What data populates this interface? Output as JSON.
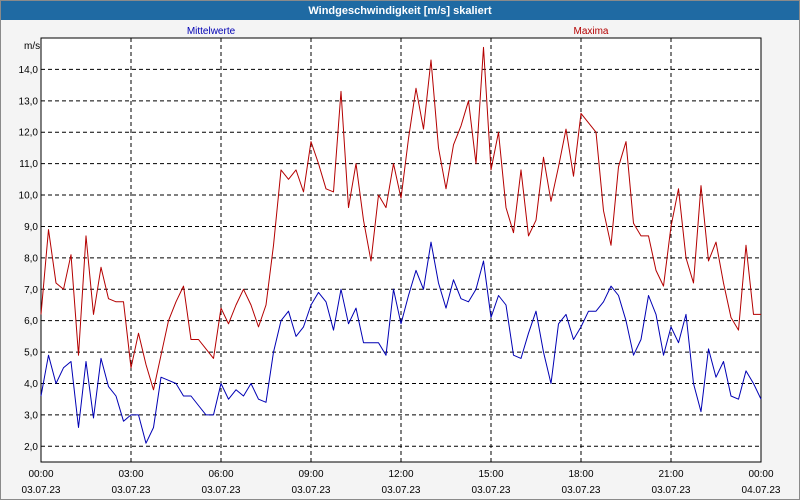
{
  "window": {
    "title": "Windgeschwindigkeit [m/s] skaliert"
  },
  "chart_data": {
    "type": "line",
    "title": "Windgeschwindigkeit [m/s] skaliert",
    "ylabel": "m/s",
    "ylim": [
      1.5,
      15.0
    ],
    "yticks": [
      2.0,
      3.0,
      4.0,
      5.0,
      6.0,
      7.0,
      8.0,
      9.0,
      10.0,
      11.0,
      12.0,
      13.0,
      14.0
    ],
    "ytick_labels": [
      "2,0",
      "3,0",
      "4,0",
      "5,0",
      "6,0",
      "7,0",
      "8,0",
      "9,0",
      "10,0",
      "11,0",
      "12,0",
      "13,0",
      "14,0"
    ],
    "xlim_hours": [
      0,
      24
    ],
    "xticks": [
      {
        "time": "00:00",
        "date": "03.07.23"
      },
      {
        "time": "03:00",
        "date": "03.07.23"
      },
      {
        "time": "06:00",
        "date": "03.07.23"
      },
      {
        "time": "09:00",
        "date": "03.07.23"
      },
      {
        "time": "12:00",
        "date": "03.07.23"
      },
      {
        "time": "15:00",
        "date": "03.07.23"
      },
      {
        "time": "18:00",
        "date": "03.07.23"
      },
      {
        "time": "21:00",
        "date": "03.07.23"
      },
      {
        "time": "00:00",
        "date": "04.07.23"
      }
    ],
    "grid": true,
    "legend_placement": "top",
    "series": [
      {
        "name": "Mittelwerte",
        "color": "#0000b4",
        "x_hours": [
          0.0,
          0.25,
          0.5,
          0.75,
          1.0,
          1.25,
          1.5,
          1.75,
          2.0,
          2.25,
          2.5,
          2.75,
          3.0,
          3.25,
          3.5,
          3.75,
          4.0,
          4.25,
          4.5,
          4.75,
          5.0,
          5.25,
          5.5,
          5.75,
          6.0,
          6.25,
          6.5,
          6.75,
          7.0,
          7.25,
          7.5,
          7.75,
          8.0,
          8.25,
          8.5,
          8.75,
          9.0,
          9.25,
          9.5,
          9.75,
          10.0,
          10.25,
          10.5,
          10.75,
          11.0,
          11.25,
          11.5,
          11.75,
          12.0,
          12.25,
          12.5,
          12.75,
          13.0,
          13.25,
          13.5,
          13.75,
          14.0,
          14.25,
          14.5,
          14.75,
          15.0,
          15.25,
          15.5,
          15.75,
          16.0,
          16.25,
          16.5,
          16.75,
          17.0,
          17.25,
          17.5,
          17.75,
          18.0,
          18.25,
          18.5,
          18.75,
          19.0,
          19.25,
          19.5,
          19.75,
          20.0,
          20.25,
          20.5,
          20.75,
          21.0,
          21.25,
          21.5,
          21.75,
          22.0,
          22.25,
          22.5,
          22.75,
          23.0,
          23.25,
          23.5,
          23.75,
          24.0
        ],
        "values": [
          3.6,
          4.9,
          4.0,
          4.5,
          4.7,
          2.6,
          4.7,
          2.9,
          4.8,
          3.9,
          3.6,
          2.8,
          3.0,
          3.0,
          2.1,
          2.6,
          4.2,
          4.1,
          4.0,
          3.6,
          3.6,
          3.3,
          3.0,
          3.0,
          4.0,
          3.5,
          3.8,
          3.6,
          4.0,
          3.5,
          3.4,
          5.0,
          6.0,
          6.3,
          5.5,
          5.8,
          6.5,
          6.9,
          6.6,
          5.7,
          7.0,
          5.9,
          6.4,
          5.3,
          5.3,
          5.3,
          4.9,
          7.0,
          5.9,
          6.8,
          7.6,
          7.0,
          8.5,
          7.2,
          6.4,
          7.3,
          6.7,
          6.6,
          7.0,
          7.9,
          6.1,
          6.8,
          6.5,
          4.9,
          4.8,
          5.6,
          6.3,
          5.0,
          4.0,
          5.9,
          6.2,
          5.4,
          5.8,
          6.3,
          6.3,
          6.6,
          7.1,
          6.8,
          6.0,
          4.9,
          5.4,
          6.8,
          6.2,
          4.9,
          5.8,
          5.3,
          6.2,
          4.0,
          3.1,
          5.1,
          4.2,
          4.7,
          3.6,
          3.5,
          4.4,
          4.0,
          3.5
        ]
      },
      {
        "name": "Maxima",
        "color": "#b40000",
        "x_hours": [
          0.0,
          0.25,
          0.5,
          0.75,
          1.0,
          1.25,
          1.5,
          1.75,
          2.0,
          2.25,
          2.5,
          2.75,
          3.0,
          3.25,
          3.5,
          3.75,
          4.0,
          4.25,
          4.5,
          4.75,
          5.0,
          5.25,
          5.5,
          5.75,
          6.0,
          6.25,
          6.5,
          6.75,
          7.0,
          7.25,
          7.5,
          7.75,
          8.0,
          8.25,
          8.5,
          8.75,
          9.0,
          9.25,
          9.5,
          9.75,
          10.0,
          10.25,
          10.5,
          10.75,
          11.0,
          11.25,
          11.5,
          11.75,
          12.0,
          12.25,
          12.5,
          12.75,
          13.0,
          13.25,
          13.5,
          13.75,
          14.0,
          14.25,
          14.5,
          14.75,
          15.0,
          15.25,
          15.5,
          15.75,
          16.0,
          16.25,
          16.5,
          16.75,
          17.0,
          17.25,
          17.5,
          17.75,
          18.0,
          18.25,
          18.5,
          18.75,
          19.0,
          19.25,
          19.5,
          19.75,
          20.0,
          20.25,
          20.5,
          20.75,
          21.0,
          21.25,
          21.5,
          21.75,
          22.0,
          22.25,
          22.5,
          22.75,
          23.0,
          23.25,
          23.5,
          23.75,
          24.0
        ],
        "values": [
          6.2,
          8.9,
          7.2,
          7.0,
          8.1,
          4.9,
          8.7,
          6.2,
          7.7,
          6.7,
          6.6,
          6.6,
          4.5,
          5.6,
          4.6,
          3.8,
          4.9,
          6.0,
          6.6,
          7.1,
          5.4,
          5.4,
          5.1,
          4.8,
          6.4,
          5.9,
          6.5,
          7.0,
          6.5,
          5.8,
          6.5,
          8.4,
          10.8,
          10.5,
          10.8,
          10.1,
          11.7,
          11.0,
          10.2,
          10.1,
          13.3,
          9.6,
          11.0,
          9.2,
          7.9,
          10.0,
          9.6,
          11.0,
          9.9,
          11.8,
          13.4,
          12.1,
          14.3,
          11.5,
          10.2,
          11.6,
          12.2,
          13.0,
          11.0,
          14.7,
          10.8,
          12.0,
          9.6,
          8.8,
          10.8,
          8.7,
          9.2,
          11.2,
          9.8,
          10.9,
          12.1,
          10.6,
          12.6,
          12.3,
          12.0,
          9.5,
          8.4,
          10.9,
          11.7,
          9.1,
          8.7,
          8.7,
          7.6,
          7.1,
          9.0,
          10.2,
          8.0,
          7.2,
          10.3,
          7.9,
          8.5,
          7.2,
          6.1,
          5.7,
          8.4,
          6.2,
          6.2
        ]
      }
    ]
  }
}
